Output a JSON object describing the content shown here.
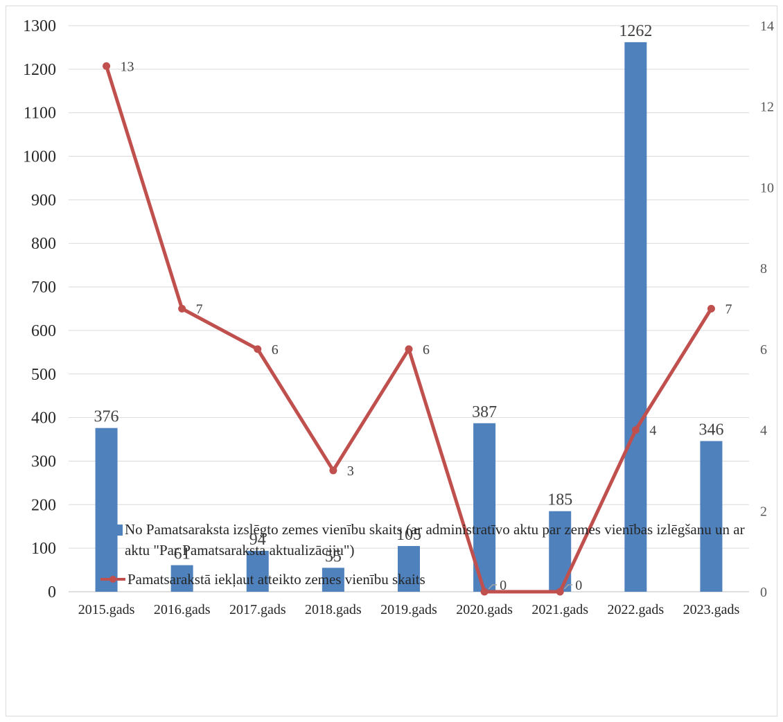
{
  "chart_data": {
    "type": "bar+line",
    "categories": [
      "2015.gads",
      "2016.gads",
      "2017.gads",
      "2018.gads",
      "2019.gads",
      "2020.gads",
      "2021.gads",
      "2022.gads",
      "2023.gads"
    ],
    "series": [
      {
        "name": "No Pamatsaraksta  izslēgto zemes vienību skaits (ar administratīvo aktu par zemes vienības izlēgšanu un ar aktu \"Par Pamatsaraksta aktualizāciju\")",
        "type": "bar",
        "axis": "left",
        "color": "#4f81bd",
        "values": [
          376,
          61,
          94,
          55,
          105,
          387,
          185,
          1262,
          346
        ]
      },
      {
        "name": "Pamatsarakstā iekļaut atteikto zemes vienību skaits",
        "type": "line",
        "axis": "right",
        "color": "#c0504d",
        "values": [
          13,
          7,
          6,
          3,
          6,
          0,
          0,
          4,
          7
        ]
      }
    ],
    "y_left": {
      "min": 0,
      "max": 1300,
      "step": 100
    },
    "y_right": {
      "min": 0,
      "max": 14,
      "step": 2
    },
    "grid": true,
    "legend_position": "bottom"
  }
}
